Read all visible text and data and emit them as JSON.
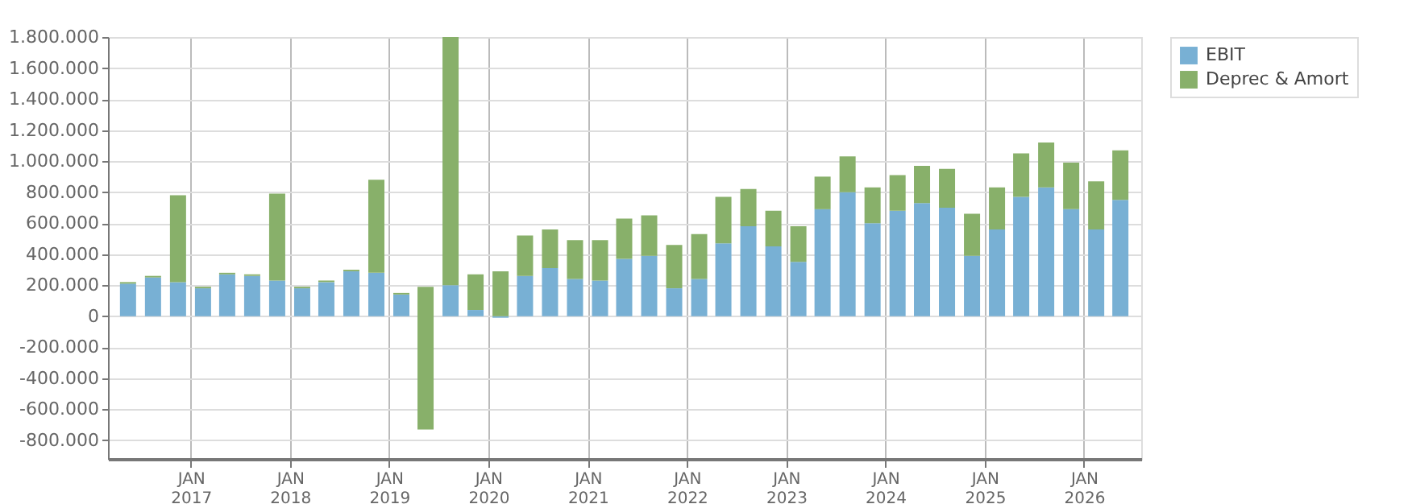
{
  "chart_data": {
    "type": "bar",
    "stacked": true,
    "x": [
      "2016-05-15",
      "2016-08-15",
      "2016-11-15",
      "2017-02-15",
      "2017-05-15",
      "2017-08-15",
      "2017-11-15",
      "2018-02-15",
      "2018-05-15",
      "2018-08-15",
      "2018-11-15",
      "2019-02-15",
      "2019-05-15",
      "2019-08-15",
      "2019-11-15",
      "2020-02-15",
      "2020-05-15",
      "2020-08-15",
      "2020-11-15",
      "2021-02-15",
      "2021-05-15",
      "2021-08-15",
      "2021-11-15",
      "2022-02-15",
      "2022-05-15",
      "2022-08-15",
      "2022-11-15",
      "2023-02-15",
      "2023-05-15",
      "2023-08-15",
      "2023-11-15",
      "2024-02-15",
      "2024-05-15",
      "2024-08-15",
      "2024-11-15",
      "2025-02-15",
      "2025-05-15",
      "2025-08-15",
      "2025-11-15",
      "2026-02-15",
      "2026-05-15"
    ],
    "series": [
      {
        "name": "EBIT",
        "color": "#78b0d4",
        "values": [
          210000,
          250000,
          220000,
          180000,
          270000,
          260000,
          230000,
          180000,
          220000,
          290000,
          280000,
          140000,
          null,
          200000,
          40000,
          -10000,
          260000,
          310000,
          240000,
          230000,
          370000,
          390000,
          180000,
          240000,
          470000,
          580000,
          450000,
          350000,
          690000,
          800000,
          600000,
          680000,
          730000,
          700000,
          390000,
          560000,
          770000,
          830000,
          690000,
          560000,
          750000
        ]
      },
      {
        "name": "Deprec & Amort",
        "color": "#88b06a",
        "values": [
          10000,
          10000,
          560000,
          10000,
          10000,
          10000,
          560000,
          10000,
          10000,
          10000,
          600000,
          10000,
          -920000,
          1600000,
          230000,
          290000,
          260000,
          250000,
          250000,
          260000,
          260000,
          260000,
          280000,
          290000,
          300000,
          240000,
          230000,
          230000,
          210000,
          230000,
          230000,
          230000,
          240000,
          250000,
          270000,
          270000,
          280000,
          290000,
          300000,
          310000,
          320000
        ],
        "base": [
          null,
          null,
          null,
          null,
          null,
          null,
          null,
          null,
          null,
          null,
          null,
          null,
          190000,
          null,
          null,
          null,
          null,
          null,
          null,
          null,
          null,
          null,
          null,
          null,
          null,
          null,
          null,
          null,
          null,
          null,
          null,
          null,
          null,
          null,
          null,
          null,
          null,
          null,
          null,
          null,
          null
        ]
      }
    ],
    "xlim": [
      "2016-04-01",
      "2026-07-01"
    ],
    "xticks": [
      {
        "value": "2017-01-01",
        "label": "JAN 2017"
      },
      {
        "value": "2018-01-01",
        "label": "JAN 2018"
      },
      {
        "value": "2019-01-01",
        "label": "JAN 2019"
      },
      {
        "value": "2020-01-01",
        "label": "JAN 2020"
      },
      {
        "value": "2021-01-01",
        "label": "JAN 2021"
      },
      {
        "value": "2022-01-01",
        "label": "JAN 2022"
      },
      {
        "value": "2023-01-01",
        "label": "JAN 2023"
      },
      {
        "value": "2024-01-01",
        "label": "JAN 2024"
      },
      {
        "value": "2025-01-01",
        "label": "JAN 2025"
      },
      {
        "value": "2026-01-01",
        "label": "JAN 2026"
      }
    ],
    "ylim": [
      -920000,
      1800000
    ],
    "yticks": [
      {
        "value": -800000,
        "label": "-800.000"
      },
      {
        "value": -600000,
        "label": "-600.000"
      },
      {
        "value": -400000,
        "label": "-400.000"
      },
      {
        "value": -200000,
        "label": "-200.000"
      },
      0,
      {
        "value": 200000,
        "label": "200.000"
      },
      {
        "value": 400000,
        "label": "400.000"
      },
      {
        "value": 600000,
        "label": "600.000"
      },
      {
        "value": 800000,
        "label": "800.000"
      },
      {
        "value": 1000000,
        "label": "1.000.000"
      },
      {
        "value": 1200000,
        "label": "1.200.000"
      },
      {
        "value": 1400000,
        "label": "1.400.000"
      },
      {
        "value": 1600000,
        "label": "1.600.000"
      },
      {
        "value": 1800000,
        "label": "1.800.000"
      }
    ],
    "grid": true,
    "legend": "right"
  }
}
